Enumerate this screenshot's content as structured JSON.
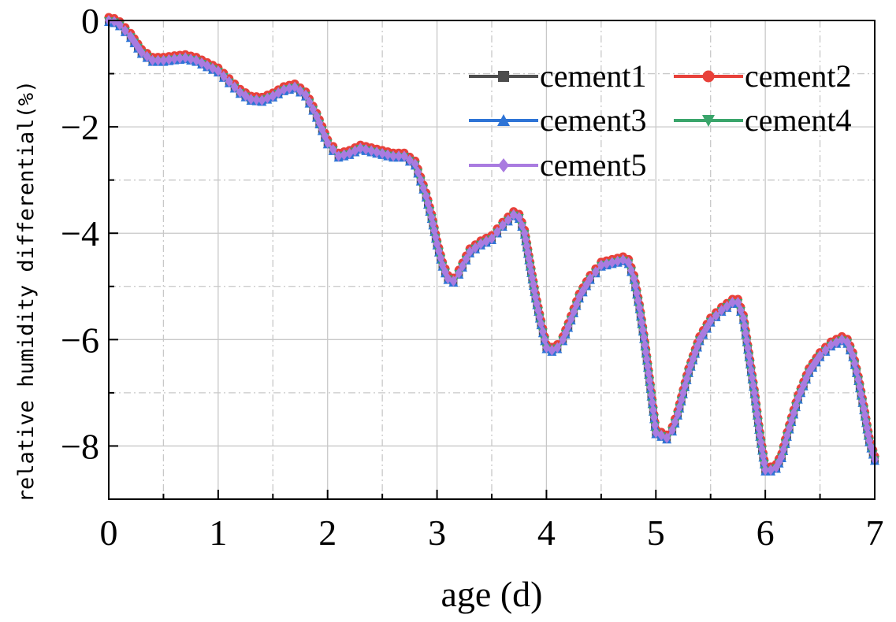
{
  "chart_data": {
    "type": "line",
    "title": "",
    "xlabel": "age (d)",
    "ylabel": "relative humidity differential(%)",
    "xlim": [
      0,
      7
    ],
    "ylim": [
      -9,
      0
    ],
    "xticks": [
      0,
      1,
      2,
      3,
      4,
      5,
      6,
      7
    ],
    "yticks": [
      0,
      -2,
      -4,
      -6,
      -8
    ],
    "xtick_labels": [
      "0",
      "1",
      "2",
      "3",
      "4",
      "5",
      "6",
      "7"
    ],
    "ytick_labels": [
      "0",
      "−2",
      "−4",
      "−6",
      "−8"
    ],
    "grid": true,
    "legend_position": "top-right",
    "x": [
      0,
      0.05,
      0.1,
      0.2,
      0.3,
      0.4,
      0.5,
      0.6,
      0.7,
      0.8,
      0.9,
      1.0,
      1.1,
      1.2,
      1.3,
      1.4,
      1.5,
      1.6,
      1.7,
      1.8,
      1.9,
      2.0,
      2.1,
      2.2,
      2.3,
      2.4,
      2.5,
      2.6,
      2.7,
      2.8,
      2.85,
      2.9,
      2.95,
      3.0,
      3.05,
      3.1,
      3.15,
      3.2,
      3.3,
      3.4,
      3.5,
      3.6,
      3.7,
      3.75,
      3.8,
      3.85,
      3.9,
      3.95,
      4.0,
      4.05,
      4.1,
      4.15,
      4.2,
      4.3,
      4.4,
      4.5,
      4.6,
      4.7,
      4.75,
      4.8,
      4.85,
      4.9,
      4.95,
      5.0,
      5.05,
      5.1,
      5.15,
      5.2,
      5.3,
      5.4,
      5.5,
      5.6,
      5.7,
      5.75,
      5.8,
      5.85,
      5.9,
      5.95,
      6.0,
      6.05,
      6.1,
      6.15,
      6.2,
      6.3,
      6.4,
      6.5,
      6.6,
      6.7,
      6.75,
      6.8,
      6.85,
      6.9,
      6.95,
      7.0
    ],
    "series": [
      {
        "name": "cement1",
        "color": "#4d4d4d",
        "marker": "square",
        "dy": 0.0,
        "values": [
          0,
          -0.02,
          -0.08,
          -0.3,
          -0.6,
          -0.75,
          -0.75,
          -0.72,
          -0.7,
          -0.75,
          -0.85,
          -0.95,
          -1.15,
          -1.35,
          -1.48,
          -1.5,
          -1.42,
          -1.3,
          -1.25,
          -1.4,
          -1.8,
          -2.3,
          -2.55,
          -2.5,
          -2.4,
          -2.45,
          -2.5,
          -2.55,
          -2.55,
          -2.7,
          -3.0,
          -3.3,
          -3.7,
          -4.2,
          -4.6,
          -4.85,
          -4.9,
          -4.75,
          -4.35,
          -4.2,
          -4.1,
          -3.85,
          -3.65,
          -3.7,
          -4.0,
          -4.6,
          -5.2,
          -5.7,
          -6.15,
          -6.2,
          -6.15,
          -6.0,
          -5.75,
          -5.2,
          -4.85,
          -4.6,
          -4.55,
          -4.5,
          -4.55,
          -4.85,
          -5.4,
          -6.1,
          -6.9,
          -7.75,
          -7.8,
          -7.85,
          -7.7,
          -7.4,
          -6.6,
          -6.0,
          -5.65,
          -5.45,
          -5.3,
          -5.3,
          -5.6,
          -6.3,
          -7.0,
          -7.8,
          -8.45,
          -8.45,
          -8.4,
          -8.2,
          -7.8,
          -7.1,
          -6.6,
          -6.3,
          -6.1,
          -6.0,
          -6.05,
          -6.3,
          -6.75,
          -7.3,
          -7.9,
          -8.25
        ]
      },
      {
        "name": "cement2",
        "color": "#e8413a",
        "marker": "circle",
        "dy": -0.04,
        "values": [
          0,
          -0.02,
          -0.08,
          -0.3,
          -0.6,
          -0.75,
          -0.75,
          -0.72,
          -0.7,
          -0.75,
          -0.85,
          -0.95,
          -1.15,
          -1.35,
          -1.48,
          -1.5,
          -1.42,
          -1.3,
          -1.25,
          -1.4,
          -1.8,
          -2.3,
          -2.55,
          -2.5,
          -2.4,
          -2.45,
          -2.5,
          -2.55,
          -2.55,
          -2.7,
          -3.0,
          -3.3,
          -3.7,
          -4.2,
          -4.6,
          -4.85,
          -4.9,
          -4.75,
          -4.35,
          -4.2,
          -4.1,
          -3.85,
          -3.65,
          -3.7,
          -4.0,
          -4.6,
          -5.2,
          -5.7,
          -6.15,
          -6.2,
          -6.15,
          -6.0,
          -5.75,
          -5.2,
          -4.85,
          -4.6,
          -4.55,
          -4.5,
          -4.55,
          -4.85,
          -5.4,
          -6.1,
          -6.9,
          -7.75,
          -7.8,
          -7.85,
          -7.7,
          -7.4,
          -6.6,
          -6.0,
          -5.65,
          -5.45,
          -5.3,
          -5.3,
          -5.6,
          -6.3,
          -7.0,
          -7.8,
          -8.45,
          -8.45,
          -8.4,
          -8.2,
          -7.8,
          -7.1,
          -6.6,
          -6.3,
          -6.1,
          -6.0,
          -6.05,
          -6.3,
          -6.75,
          -7.3,
          -7.9,
          -8.25
        ]
      },
      {
        "name": "cement3",
        "color": "#2e74d6",
        "marker": "triangle-up",
        "dy": 0.02,
        "values": [
          0,
          -0.02,
          -0.08,
          -0.3,
          -0.6,
          -0.75,
          -0.75,
          -0.72,
          -0.7,
          -0.75,
          -0.85,
          -0.95,
          -1.15,
          -1.35,
          -1.48,
          -1.5,
          -1.42,
          -1.3,
          -1.25,
          -1.4,
          -1.8,
          -2.3,
          -2.55,
          -2.5,
          -2.4,
          -2.45,
          -2.5,
          -2.55,
          -2.55,
          -2.7,
          -3.0,
          -3.3,
          -3.7,
          -4.2,
          -4.6,
          -4.85,
          -4.9,
          -4.75,
          -4.35,
          -4.2,
          -4.1,
          -3.85,
          -3.65,
          -3.7,
          -4.0,
          -4.6,
          -5.2,
          -5.7,
          -6.15,
          -6.2,
          -6.15,
          -6.0,
          -5.75,
          -5.2,
          -4.85,
          -4.6,
          -4.55,
          -4.5,
          -4.55,
          -4.85,
          -5.4,
          -6.1,
          -6.9,
          -7.75,
          -7.8,
          -7.85,
          -7.7,
          -7.4,
          -6.6,
          -6.0,
          -5.65,
          -5.45,
          -5.3,
          -5.3,
          -5.6,
          -6.3,
          -7.0,
          -7.8,
          -8.45,
          -8.45,
          -8.4,
          -8.2,
          -7.8,
          -7.1,
          -6.6,
          -6.3,
          -6.1,
          -6.0,
          -6.05,
          -6.3,
          -6.75,
          -7.3,
          -7.9,
          -8.25
        ]
      },
      {
        "name": "cement4",
        "color": "#3aa56b",
        "marker": "triangle-down",
        "dy": 0.01,
        "values": [
          0,
          -0.02,
          -0.08,
          -0.3,
          -0.6,
          -0.75,
          -0.75,
          -0.72,
          -0.7,
          -0.75,
          -0.85,
          -0.95,
          -1.15,
          -1.35,
          -1.48,
          -1.5,
          -1.42,
          -1.3,
          -1.25,
          -1.4,
          -1.8,
          -2.3,
          -2.55,
          -2.5,
          -2.4,
          -2.45,
          -2.5,
          -2.55,
          -2.55,
          -2.7,
          -3.0,
          -3.3,
          -3.7,
          -4.2,
          -4.6,
          -4.85,
          -4.9,
          -4.75,
          -4.35,
          -4.2,
          -4.1,
          -3.85,
          -3.65,
          -3.7,
          -4.0,
          -4.6,
          -5.2,
          -5.7,
          -6.15,
          -6.2,
          -6.15,
          -6.0,
          -5.75,
          -5.2,
          -4.85,
          -4.6,
          -4.55,
          -4.5,
          -4.55,
          -4.85,
          -5.4,
          -6.1,
          -6.9,
          -7.75,
          -7.8,
          -7.85,
          -7.7,
          -7.4,
          -6.6,
          -6.0,
          -5.65,
          -5.45,
          -5.3,
          -5.3,
          -5.6,
          -6.3,
          -7.0,
          -7.8,
          -8.45,
          -8.45,
          -8.4,
          -8.2,
          -7.8,
          -7.1,
          -6.6,
          -6.3,
          -6.1,
          -6.0,
          -6.05,
          -6.3,
          -6.75,
          -7.3,
          -7.9,
          -8.25
        ]
      },
      {
        "name": "cement5",
        "color": "#a97be0",
        "marker": "diamond",
        "dy": 0.0,
        "values": [
          0,
          -0.02,
          -0.08,
          -0.3,
          -0.6,
          -0.75,
          -0.75,
          -0.72,
          -0.7,
          -0.75,
          -0.85,
          -0.95,
          -1.15,
          -1.35,
          -1.48,
          -1.5,
          -1.42,
          -1.3,
          -1.25,
          -1.4,
          -1.8,
          -2.3,
          -2.55,
          -2.5,
          -2.4,
          -2.45,
          -2.5,
          -2.55,
          -2.55,
          -2.7,
          -3.0,
          -3.3,
          -3.7,
          -4.2,
          -4.6,
          -4.85,
          -4.9,
          -4.75,
          -4.35,
          -4.2,
          -4.1,
          -3.85,
          -3.65,
          -3.7,
          -4.0,
          -4.6,
          -5.2,
          -5.7,
          -6.15,
          -6.2,
          -6.15,
          -6.0,
          -5.75,
          -5.2,
          -4.85,
          -4.6,
          -4.55,
          -4.5,
          -4.55,
          -4.85,
          -5.4,
          -6.1,
          -6.9,
          -7.75,
          -7.8,
          -7.85,
          -7.7,
          -7.4,
          -6.6,
          -6.0,
          -5.65,
          -5.45,
          -5.3,
          -5.3,
          -5.6,
          -6.3,
          -7.0,
          -7.8,
          -8.45,
          -8.45,
          -8.4,
          -8.2,
          -7.8,
          -7.1,
          -6.6,
          -6.3,
          -6.1,
          -6.0,
          -6.05,
          -6.3,
          -6.75,
          -7.3,
          -7.9,
          -8.25
        ]
      }
    ]
  }
}
